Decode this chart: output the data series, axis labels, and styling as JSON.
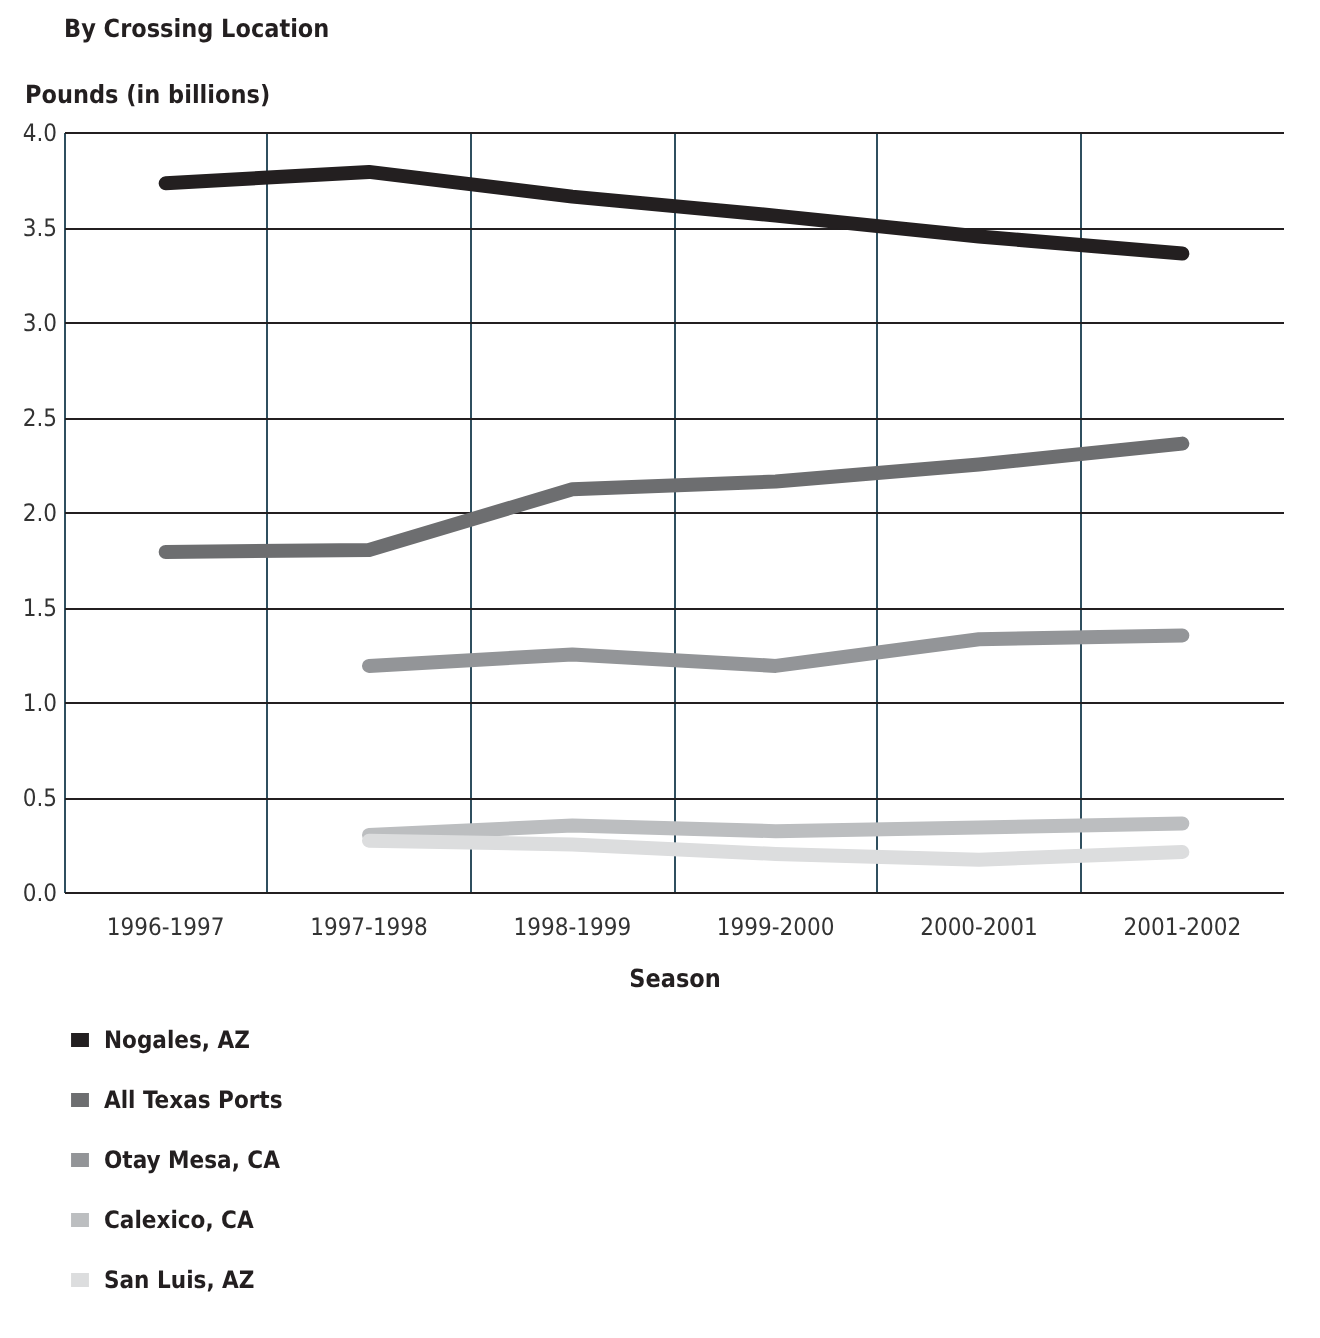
{
  "chart_data": {
    "type": "line",
    "title": "By Crossing Location",
    "ylabel": "Pounds (in billions)",
    "xlabel": "Season",
    "categories": [
      "1996-1997",
      "1997-1998",
      "1998-1999",
      "1999-2000",
      "2000-2001",
      "2001-2002"
    ],
    "series": [
      {
        "name": "Nogales, AZ",
        "color": "#231f20",
        "values": [
          3.73,
          3.79,
          3.66,
          3.56,
          3.45,
          3.36
        ]
      },
      {
        "name": "All Texas Ports",
        "color": "#6d6e70",
        "values": [
          1.79,
          1.8,
          2.12,
          2.16,
          2.25,
          2.36
        ]
      },
      {
        "name": "Otay Mesa, CA",
        "color": "#939598",
        "values": [
          null,
          1.19,
          1.25,
          1.19,
          1.33,
          1.35
        ]
      },
      {
        "name": "Calexico, CA",
        "color": "#bcbec0",
        "values": [
          null,
          0.3,
          0.35,
          0.32,
          0.34,
          0.36
        ]
      },
      {
        "name": "San Luis, AZ",
        "color": "#dcddde",
        "values": [
          null,
          0.27,
          0.25,
          0.2,
          0.17,
          0.21
        ]
      }
    ],
    "ylim": [
      0,
      4
    ],
    "yticks": [
      {
        "value": 0,
        "label": "0.0"
      },
      0.5,
      {
        "value": 1,
        "label": "1.0"
      },
      1.5,
      {
        "value": 2,
        "label": "2.0"
      },
      2.5,
      {
        "value": 3,
        "label": "3.0"
      },
      3.5,
      {
        "value": 4,
        "label": "4.0"
      }
    ],
    "grid": true,
    "legend": "bottom",
    "marker": "none",
    "line_style": "solid"
  }
}
